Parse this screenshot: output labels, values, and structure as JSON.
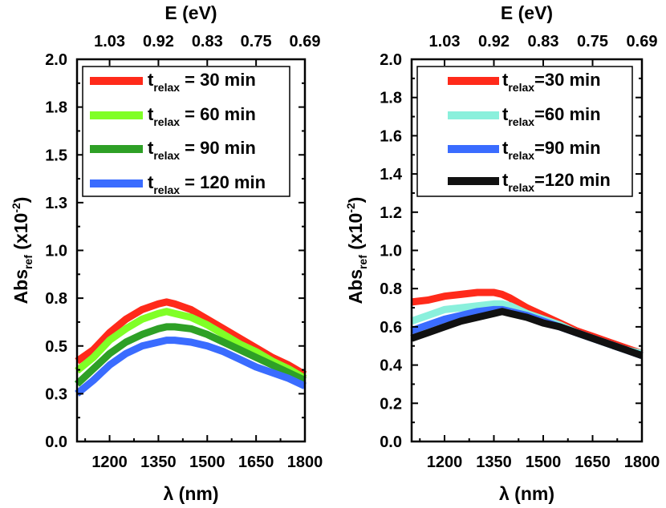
{
  "chart_data": [
    {
      "type": "line",
      "title": "",
      "xlabel": "λ (nm)",
      "ylabel": "Abs_ref (x10^-2)",
      "ylabel_main": "Abs",
      "ylabel_sub": "ref",
      "ylabel_unit_pre": " (x10",
      "ylabel_unit_sup": "-2",
      "ylabel_unit_post": ")",
      "top_xlabel": "E (eV)",
      "top_tick_labels": [
        "1.03",
        "0.92",
        "0.83",
        "0.75",
        "0.69"
      ],
      "top_tick_positions_nm": [
        1200,
        1350,
        1500,
        1650,
        1800
      ],
      "xlim": [
        1100,
        1800
      ],
      "ylim": [
        0,
        2.0
      ],
      "xticks": [
        1200,
        1350,
        1500,
        1650,
        1800
      ],
      "xtick_labels": [
        "1200",
        "1350",
        "1500",
        "1650",
        "1800"
      ],
      "yticks": [
        0,
        0.25,
        0.5,
        0.75,
        1.0,
        1.25,
        1.5,
        1.75,
        2.0
      ],
      "ytick_labels": [
        "0.0",
        "0.3",
        "0.5",
        "0.8",
        "1.0",
        "1.3",
        "1.5",
        "1.8",
        "2.0"
      ],
      "grid": false,
      "legend_position": "top-left",
      "legend_style": "spaced",
      "series": [
        {
          "name": "t_relax = 30 min",
          "label_main": "t",
          "label_sub": "relax",
          "label_rest": " = 30 min",
          "color": "#ff2a1a",
          "x": [
            1100,
            1150,
            1200,
            1250,
            1300,
            1350,
            1375,
            1400,
            1450,
            1500,
            1550,
            1600,
            1650,
            1700,
            1750,
            1800
          ],
          "y": [
            0.42,
            0.48,
            0.57,
            0.64,
            0.69,
            0.72,
            0.73,
            0.72,
            0.69,
            0.64,
            0.59,
            0.54,
            0.49,
            0.44,
            0.4,
            0.35
          ]
        },
        {
          "name": "t_relax = 60 min",
          "label_main": "t",
          "label_sub": "relax",
          "label_rest": " = 60 min",
          "color": "#80ff26",
          "x": [
            1100,
            1150,
            1200,
            1250,
            1300,
            1350,
            1375,
            1400,
            1450,
            1500,
            1550,
            1600,
            1650,
            1700,
            1750,
            1800
          ],
          "y": [
            0.37,
            0.44,
            0.53,
            0.59,
            0.64,
            0.67,
            0.68,
            0.67,
            0.65,
            0.61,
            0.56,
            0.51,
            0.47,
            0.42,
            0.38,
            0.33
          ]
        },
        {
          "name": "t_relax = 90 min",
          "label_main": "t",
          "label_sub": "relax",
          "label_rest": " = 90 min",
          "color": "#2ea026",
          "x": [
            1100,
            1150,
            1200,
            1250,
            1300,
            1350,
            1375,
            1400,
            1450,
            1500,
            1550,
            1600,
            1650,
            1700,
            1750,
            1800
          ],
          "y": [
            0.3,
            0.38,
            0.46,
            0.52,
            0.56,
            0.59,
            0.6,
            0.6,
            0.59,
            0.56,
            0.52,
            0.48,
            0.44,
            0.4,
            0.36,
            0.32
          ]
        },
        {
          "name": "t_relax = 120 min",
          "label_main": "t",
          "label_sub": "relax",
          "label_rest": " = 120 min",
          "color": "#3a6cff",
          "x": [
            1100,
            1150,
            1200,
            1250,
            1300,
            1350,
            1375,
            1400,
            1450,
            1500,
            1550,
            1600,
            1650,
            1700,
            1750,
            1800
          ],
          "y": [
            0.25,
            0.32,
            0.4,
            0.46,
            0.5,
            0.52,
            0.53,
            0.53,
            0.52,
            0.5,
            0.47,
            0.43,
            0.39,
            0.36,
            0.33,
            0.29
          ]
        }
      ]
    },
    {
      "type": "line",
      "title": "",
      "xlabel": "λ (nm)",
      "ylabel": "Abs_ref (x10^-2)",
      "ylabel_main": "Abs",
      "ylabel_sub": "ref",
      "ylabel_unit_pre": " (x10",
      "ylabel_unit_sup": "-2",
      "ylabel_unit_post": ")",
      "top_xlabel": "E (eV)",
      "top_tick_labels": [
        "1.03",
        "0.92",
        "0.83",
        "0.75",
        "0.69"
      ],
      "top_tick_positions_nm": [
        1200,
        1350,
        1500,
        1650,
        1800
      ],
      "xlim": [
        1100,
        1800
      ],
      "ylim": [
        0,
        2.0
      ],
      "xticks": [
        1200,
        1350,
        1500,
        1650,
        1800
      ],
      "xtick_labels": [
        "1200",
        "1350",
        "1500",
        "1650",
        "1800"
      ],
      "yticks": [
        0,
        0.2,
        0.4,
        0.6,
        0.8,
        1.0,
        1.2,
        1.4,
        1.6,
        1.8,
        2.0
      ],
      "ytick_labels": [
        "0.0",
        "0.2",
        "0.4",
        "0.6",
        "0.8",
        "1.0",
        "1.2",
        "1.4",
        "1.6",
        "1.8",
        "2.0"
      ],
      "grid": false,
      "legend_position": "top-left",
      "legend_style": "compact",
      "series": [
        {
          "name": "t_relax =30 min",
          "label_main": "t",
          "label_sub": "relax",
          "label_rest": "=30 min",
          "color": "#ff2a1a",
          "x": [
            1100,
            1150,
            1200,
            1250,
            1300,
            1350,
            1375,
            1400,
            1450,
            1500,
            1550,
            1600,
            1650,
            1700,
            1750,
            1800
          ],
          "y": [
            0.73,
            0.74,
            0.76,
            0.77,
            0.78,
            0.78,
            0.77,
            0.75,
            0.7,
            0.66,
            0.62,
            0.58,
            0.55,
            0.52,
            0.49,
            0.46
          ]
        },
        {
          "name": "t_relax =60 min",
          "label_main": "t",
          "label_sub": "relax",
          "label_rest": "=60 min",
          "color": "#8af0dc",
          "x": [
            1100,
            1150,
            1200,
            1250,
            1300,
            1350,
            1375,
            1400,
            1450,
            1500,
            1550,
            1600,
            1650,
            1700,
            1750,
            1800
          ],
          "y": [
            0.63,
            0.66,
            0.69,
            0.7,
            0.71,
            0.72,
            0.72,
            0.71,
            0.67,
            0.64,
            0.61,
            0.57,
            0.54,
            0.51,
            0.48,
            0.46
          ]
        },
        {
          "name": "t_relax =90 min",
          "label_main": "t",
          "label_sub": "relax",
          "label_rest": "=90 min",
          "color": "#3a6cff",
          "x": [
            1100,
            1150,
            1200,
            1250,
            1300,
            1350,
            1375,
            1400,
            1450,
            1500,
            1550,
            1600,
            1650,
            1700,
            1750,
            1800
          ],
          "y": [
            0.58,
            0.61,
            0.64,
            0.66,
            0.68,
            0.69,
            0.69,
            0.68,
            0.66,
            0.63,
            0.6,
            0.57,
            0.54,
            0.51,
            0.48,
            0.45
          ]
        },
        {
          "name": "t_relax =120 min",
          "label_main": "t",
          "label_sub": "relax",
          "label_rest": "=120 min",
          "color": "#111111",
          "x": [
            1100,
            1150,
            1200,
            1250,
            1300,
            1350,
            1375,
            1400,
            1450,
            1500,
            1550,
            1600,
            1650,
            1700,
            1750,
            1800
          ],
          "y": [
            0.54,
            0.57,
            0.6,
            0.63,
            0.65,
            0.67,
            0.68,
            0.67,
            0.65,
            0.62,
            0.6,
            0.57,
            0.54,
            0.51,
            0.48,
            0.45
          ]
        }
      ]
    }
  ]
}
